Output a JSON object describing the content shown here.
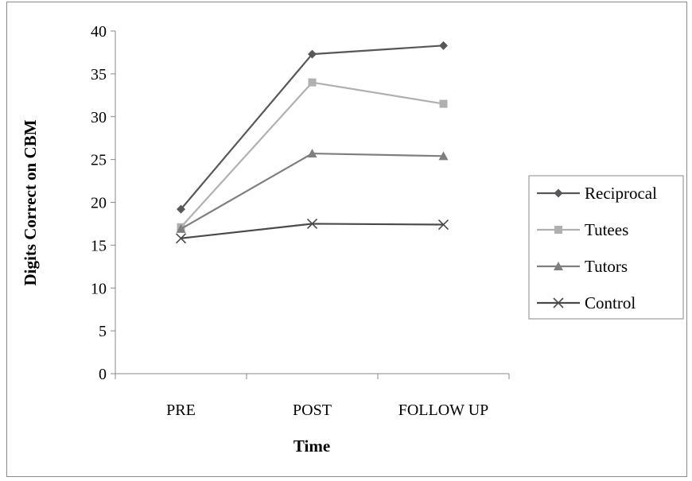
{
  "chart_data": {
    "type": "line",
    "title": "",
    "xlabel": "Time",
    "ylabel": "Digits Correct on CBM",
    "categories": [
      "PRE",
      "POST",
      "FOLLOW UP"
    ],
    "ylim": [
      0,
      40
    ],
    "yticks": [
      0,
      5,
      10,
      15,
      20,
      25,
      30,
      35,
      40
    ],
    "grid": false,
    "legend_position": "right",
    "series": [
      {
        "name": "Reciprocal",
        "values": [
          19.2,
          37.3,
          38.3
        ],
        "color": "#58585a",
        "marker": "diamond"
      },
      {
        "name": "Tutees",
        "values": [
          17.1,
          34.0,
          31.5
        ],
        "color": "#b0b0b0",
        "marker": "square"
      },
      {
        "name": "Tutors",
        "values": [
          16.9,
          25.7,
          25.4
        ],
        "color": "#7f7f7f",
        "marker": "triangle"
      },
      {
        "name": "Control",
        "values": [
          15.8,
          17.5,
          17.4
        ],
        "color": "#4a4a4a",
        "marker": "x"
      }
    ]
  }
}
